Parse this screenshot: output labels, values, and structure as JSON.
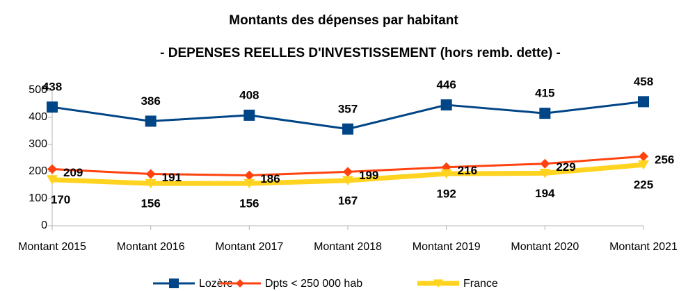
{
  "chart_data": {
    "type": "line",
    "title": "Montants des dépenses par habitant",
    "subtitle": "- DEPENSES REELLES D'INVESTISSEMENT (hors remb. dette) -",
    "categories": [
      "Montant 2015",
      "Montant 2016",
      "Montant 2017",
      "Montant 2018",
      "Montant 2019",
      "Montant 2020",
      "Montant 2021"
    ],
    "series": [
      {
        "name": "Lozère",
        "color": "#004586",
        "marker": "square",
        "values": [
          438,
          386,
          408,
          357,
          446,
          415,
          458
        ]
      },
      {
        "name": "Dpts < 250 000 hab",
        "color": "#ff420e",
        "marker": "diamond",
        "values": [
          209,
          191,
          186,
          199,
          216,
          229,
          256
        ]
      },
      {
        "name": "France",
        "color": "#ffd320",
        "marker": "triangle-down",
        "values": [
          170,
          156,
          156,
          167,
          192,
          194,
          225
        ]
      }
    ],
    "ylim": [
      0,
      500
    ],
    "yticks": [
      0,
      100,
      200,
      300,
      400,
      500
    ],
    "grid": false,
    "legend": "bottom"
  }
}
